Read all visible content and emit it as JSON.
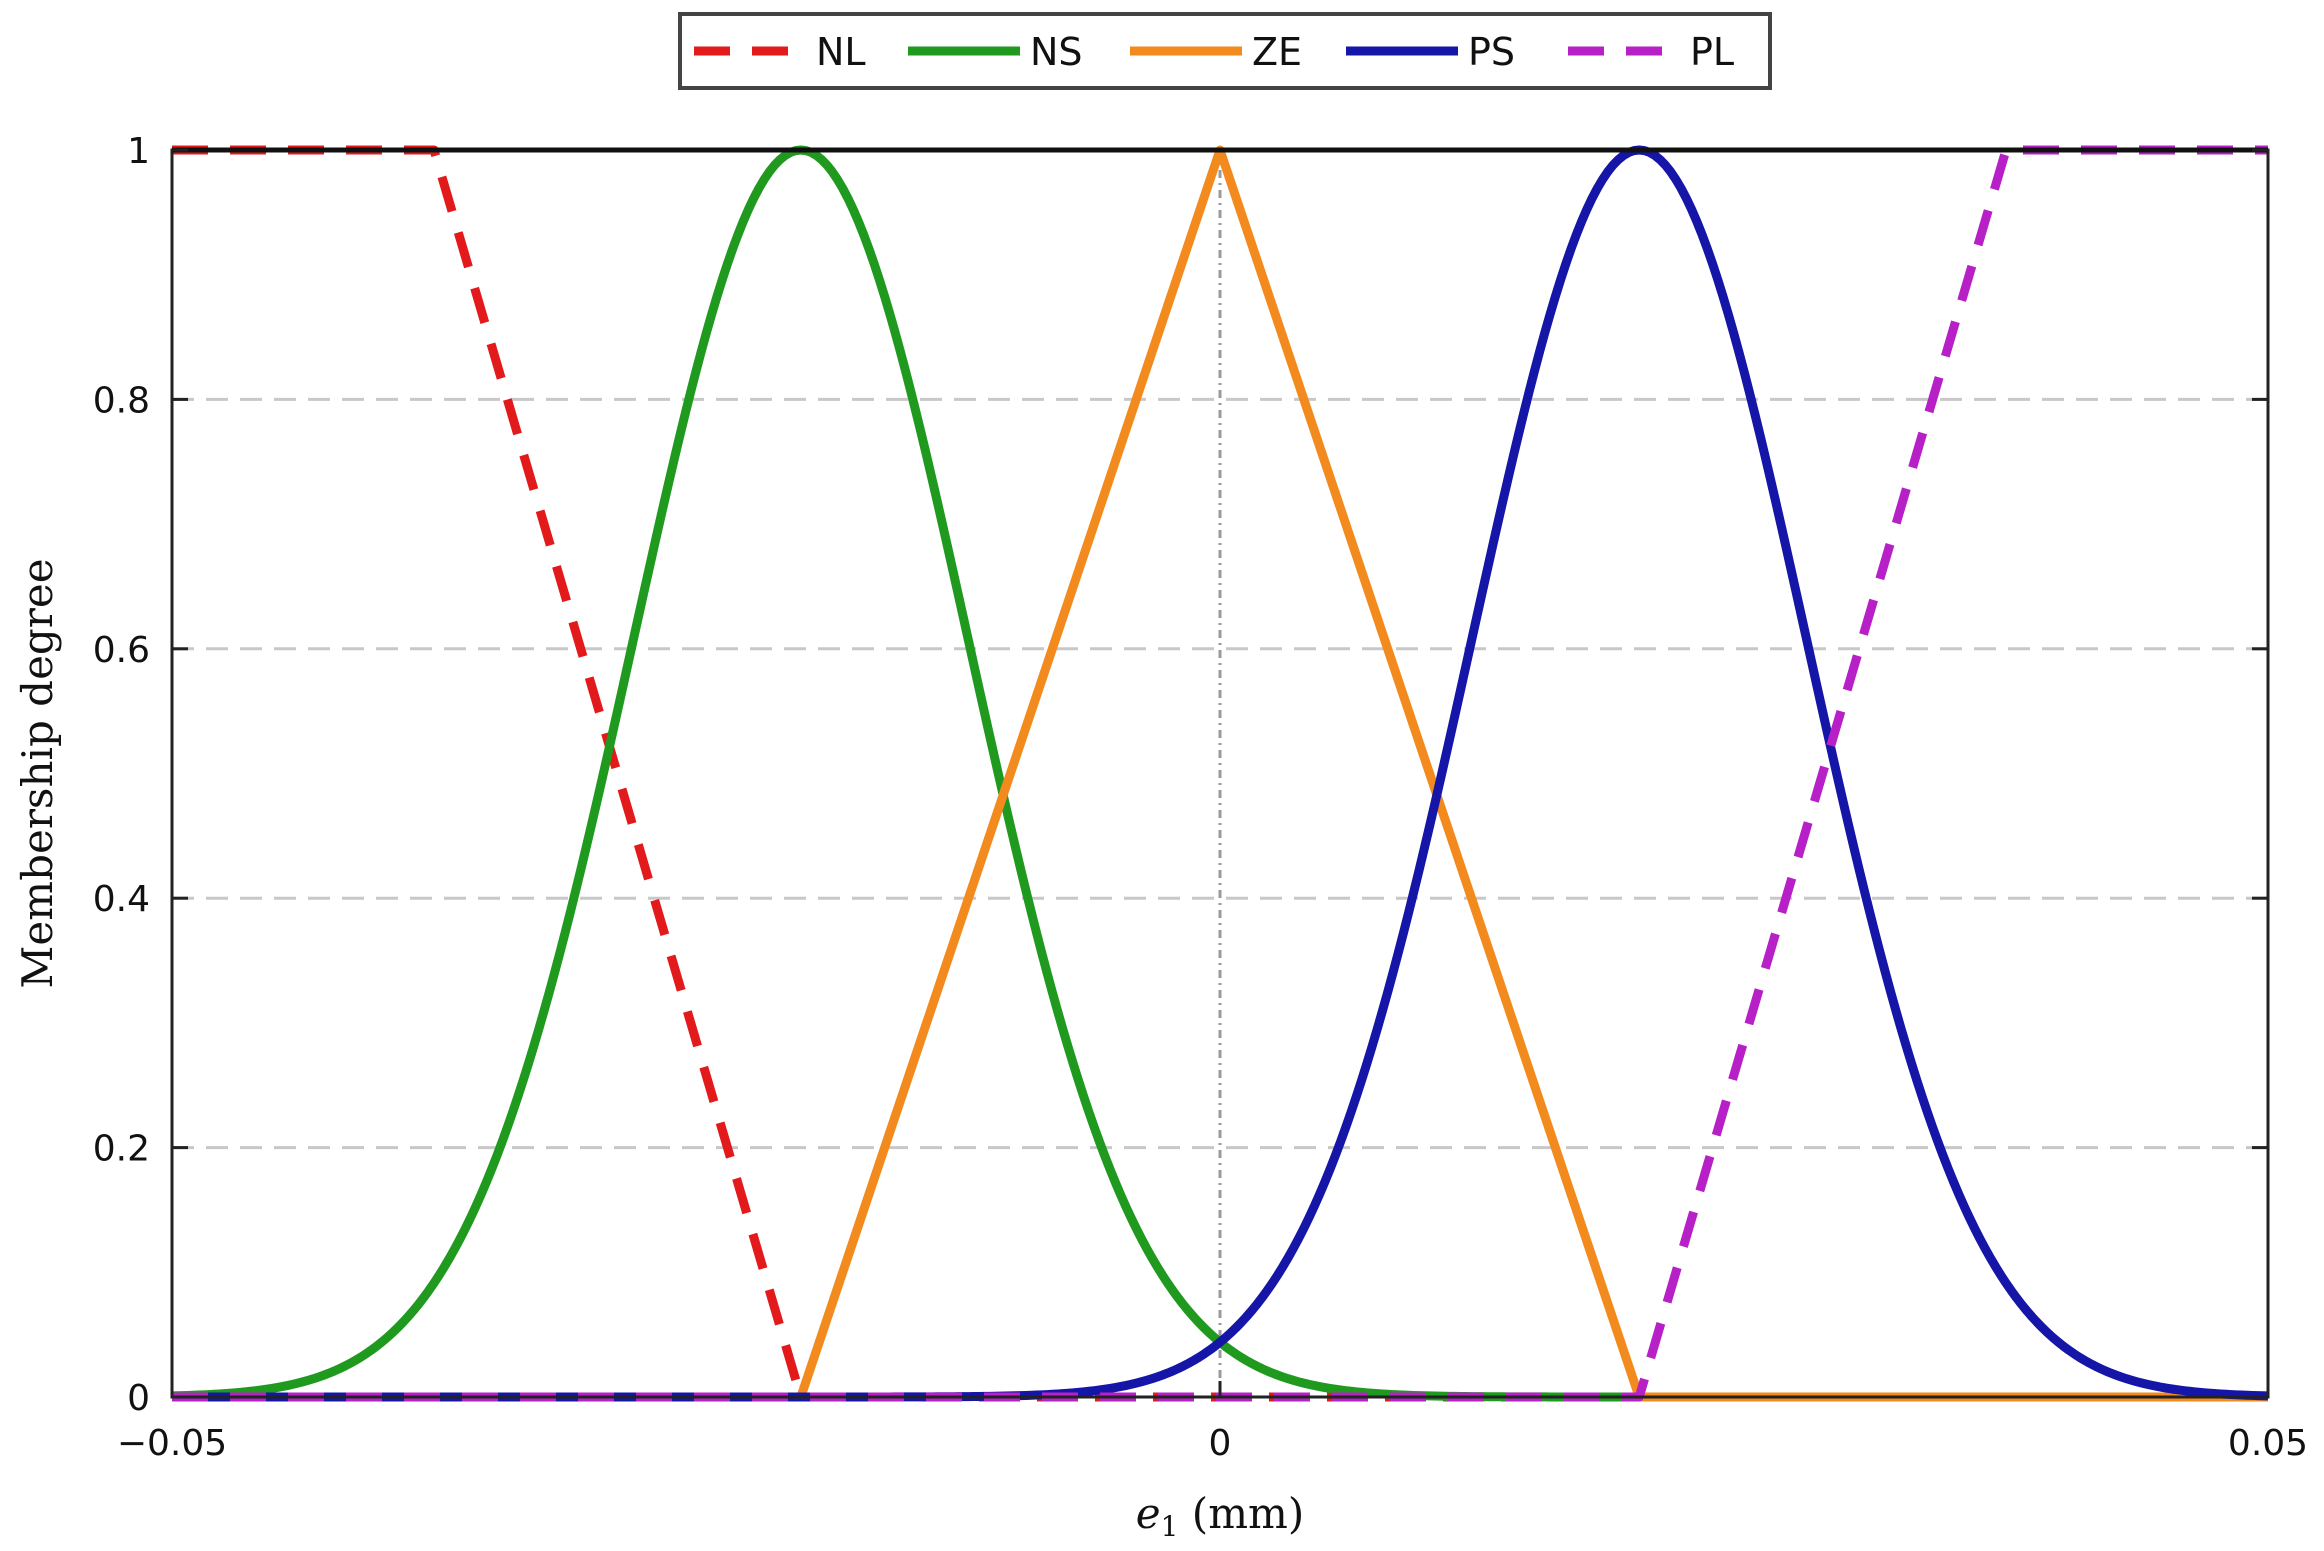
{
  "chart_data": {
    "type": "line",
    "title": "",
    "xlabel": "e",
    "xlabel_sub": "1",
    "xlabel_unit": " (mm)",
    "ylabel": "Membership degree",
    "xlim": [
      -0.05,
      0.05
    ],
    "ylim": [
      0,
      1
    ],
    "x_ticks": [
      -0.05,
      0,
      0.05
    ],
    "x_tick_labels": [
      "−0.05",
      "0",
      "0.05"
    ],
    "y_ticks": [
      0,
      0.2,
      0.4,
      0.6,
      0.8,
      1
    ],
    "y_tick_labels": [
      "0",
      "0.2",
      "0.4",
      "0.6",
      "0.8",
      "1"
    ],
    "grid": "horizontal dashed",
    "legend": {
      "placement": "top-center, outside plot",
      "orientation": "horizontal"
    },
    "series": [
      {
        "name": "NL",
        "color": "#e31a1c",
        "style": "dashed",
        "kind": "zmf-linear",
        "x": [
          -0.05,
          -0.0375,
          -0.02,
          0.05
        ],
        "y": [
          1,
          1,
          0,
          0
        ]
      },
      {
        "name": "NS",
        "color": "#1f9a1f",
        "style": "solid",
        "kind": "gaussian",
        "center": -0.02,
        "sigma": 0.008
      },
      {
        "name": "ZE",
        "color": "#f28a1e",
        "style": "solid",
        "kind": "triangular",
        "x": [
          -0.05,
          -0.02,
          0,
          0.02,
          0.05
        ],
        "y": [
          0,
          0,
          1,
          0,
          0
        ]
      },
      {
        "name": "PS",
        "color": "#1515a8",
        "style": "solid",
        "kind": "gaussian",
        "center": 0.02,
        "sigma": 0.008
      },
      {
        "name": "PL",
        "color": "#b620c6",
        "style": "dashed",
        "kind": "smf-linear",
        "x": [
          -0.05,
          0.02,
          0.0375,
          0.05
        ],
        "y": [
          0,
          0,
          1,
          1
        ]
      }
    ]
  }
}
